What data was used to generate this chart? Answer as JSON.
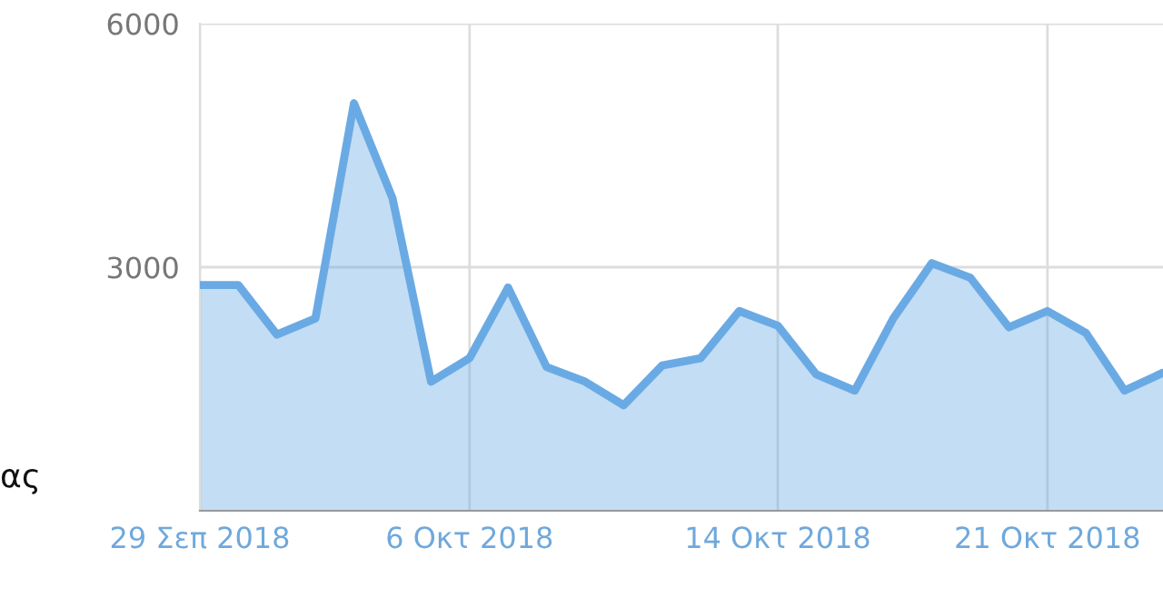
{
  "chart_data": {
    "type": "area",
    "x": [
      "2018-09-29",
      "2018-09-30",
      "2018-10-01",
      "2018-10-02",
      "2018-10-03",
      "2018-10-04",
      "2018-10-05",
      "2018-10-06",
      "2018-10-07",
      "2018-10-08",
      "2018-10-09",
      "2018-10-10",
      "2018-10-11",
      "2018-10-12",
      "2018-10-13",
      "2018-10-14",
      "2018-10-15",
      "2018-10-16",
      "2018-10-17",
      "2018-10-18",
      "2018-10-19",
      "2018-10-20",
      "2018-10-21",
      "2018-10-22",
      "2018-10-23",
      "2018-10-24"
    ],
    "series": [
      {
        "color": "#6aaae4",
        "values": [
          2780,
          2780,
          2170,
          2370,
          5020,
          3850,
          1590,
          1880,
          2750,
          1770,
          1590,
          1300,
          1790,
          1880,
          2460,
          2280,
          1680,
          1480,
          2370,
          3050,
          2870,
          2260,
          2460,
          2190,
          1480,
          1700
        ]
      }
    ],
    "xlim": [
      "2018-09-29",
      "2018-10-24"
    ],
    "xticks": [
      {
        "value": "2018-09-29",
        "label": "29 Σεπ 2018"
      },
      {
        "value": "2018-10-06",
        "label": "6 Οκτ 2018"
      },
      {
        "value": "2018-10-14",
        "label": "14 Οκτ 2018"
      },
      {
        "value": "2018-10-21",
        "label": "21 Οκτ 2018"
      }
    ],
    "ylim": [
      0,
      6000
    ],
    "yticks": [
      3000,
      6000
    ],
    "grid": true,
    "annotations": [
      "ας"
    ]
  }
}
